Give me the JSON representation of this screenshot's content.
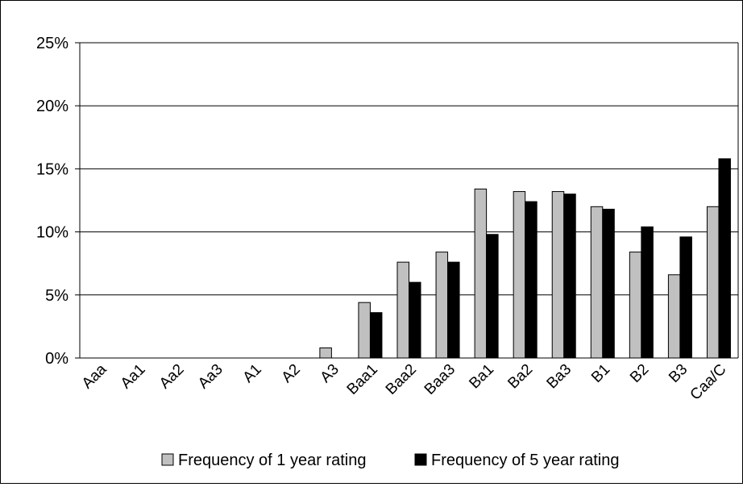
{
  "chart_data": {
    "type": "bar",
    "title": "",
    "xlabel": "",
    "ylabel": "",
    "categories": [
      "Aaa",
      "Aa1",
      "Aa2",
      "Aa3",
      "A1",
      "A2",
      "A3",
      "Baa1",
      "Baa2",
      "Baa3",
      "Ba1",
      "Ba2",
      "Ba3",
      "B1",
      "B2",
      "B3",
      "Caa/C"
    ],
    "series": [
      {
        "name": "Frequency of 1 year rating",
        "color": "#c0c0c0",
        "values": [
          0,
          0,
          0,
          0,
          0,
          0,
          0.8,
          4.4,
          7.6,
          8.4,
          13.4,
          13.2,
          13.2,
          12.0,
          8.4,
          6.6,
          12.0
        ]
      },
      {
        "name": "Frequency of 5 year rating",
        "color": "#000000",
        "values": [
          0,
          0,
          0,
          0,
          0,
          0,
          0,
          3.6,
          6.0,
          7.6,
          9.8,
          12.4,
          13.0,
          11.8,
          10.4,
          9.6,
          15.8
        ]
      }
    ],
    "ylim": [
      0,
      25
    ],
    "yticks": [
      0,
      5,
      10,
      15,
      20,
      25
    ],
    "ytick_labels": [
      "0%",
      "5%",
      "10%",
      "15%",
      "20%",
      "25%"
    ],
    "grid": true,
    "legend_position": "bottom"
  }
}
